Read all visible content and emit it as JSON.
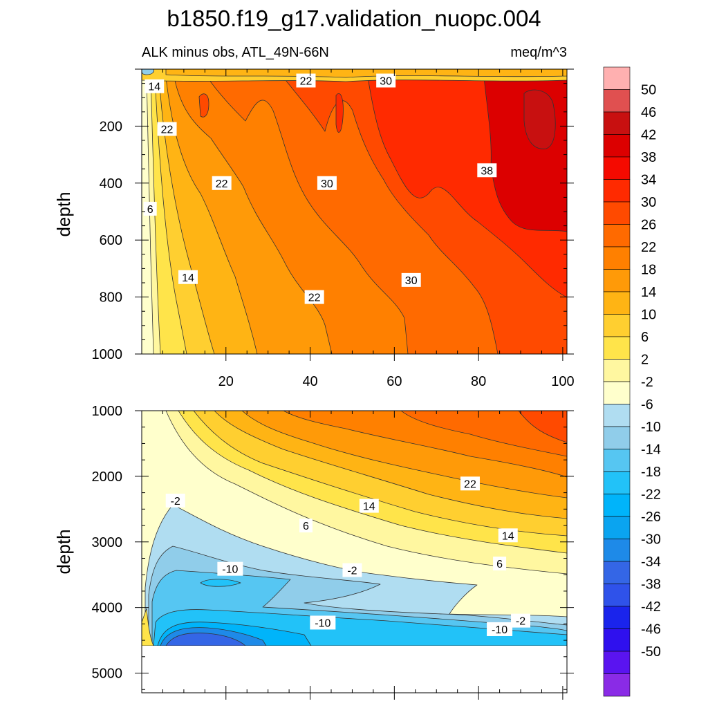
{
  "title": "b1850.f19_g17.validation_nuopc.004",
  "subtitle_left": "ALK minus obs, ATL_49N-66N",
  "subtitle_right": "meq/m^3",
  "colors": {
    "levels": [
      "#8a2be6",
      "#5a14f0",
      "#2f10ee",
      "#1a24ec",
      "#2f52ea",
      "#3466e6",
      "#1e8ae8",
      "#0aa4f0",
      "#00b4fa",
      "#22c2f8",
      "#56c6f2",
      "#90cdea",
      "#b0ddf1",
      "#ffffcc",
      "#fff7a0",
      "#ffe44a",
      "#ffcf30",
      "#ffb414",
      "#ff9a08",
      "#ff8000",
      "#ff6a00",
      "#ff4a00",
      "#ff2a00",
      "#f50a00",
      "#dc0000",
      "#c81010",
      "#e05050",
      "#ffb0b0"
    ]
  },
  "colorbar": {
    "labels": [
      "50",
      "46",
      "42",
      "38",
      "34",
      "30",
      "26",
      "22",
      "18",
      "14",
      "10",
      "6",
      "2",
      "-2",
      "-6",
      "-10",
      "-14",
      "-18",
      "-22",
      "-26",
      "-30",
      "-34",
      "-38",
      "-42",
      "-46",
      "-50"
    ]
  },
  "chart_data": [
    {
      "type": "contour",
      "panel": "upper",
      "ylabel": "depth",
      "xlim": [
        0,
        101
      ],
      "ylim": [
        0,
        1000
      ],
      "y_inverted": true,
      "x_ticks": [
        "20",
        "40",
        "60",
        "80",
        "100"
      ],
      "y_ticks": [
        "200",
        "400",
        "600",
        "800",
        "1000"
      ],
      "x_tick_values": [
        20,
        40,
        60,
        80,
        100
      ],
      "y_tick_values": [
        200,
        400,
        600,
        800,
        1000
      ],
      "contour_labels": [
        {
          "text": "14",
          "x": 3,
          "y": 60
        },
        {
          "text": "22",
          "x": 6,
          "y": 210
        },
        {
          "text": "22",
          "x": 39,
          "y": 40
        },
        {
          "text": "30",
          "x": 58,
          "y": 40
        },
        {
          "text": "22",
          "x": 19,
          "y": 400
        },
        {
          "text": "30",
          "x": 44,
          "y": 400
        },
        {
          "text": "38",
          "x": 82,
          "y": 355
        },
        {
          "text": "6",
          "x": 2,
          "y": 490
        },
        {
          "text": "14",
          "x": 11,
          "y": 730
        },
        {
          "text": "22",
          "x": 41,
          "y": 800
        },
        {
          "text": "30",
          "x": 64,
          "y": 740
        }
      ]
    },
    {
      "type": "contour",
      "panel": "lower",
      "ylabel": "depth",
      "xlim": [
        0,
        101
      ],
      "ylim": [
        1000,
        5300
      ],
      "y_inverted": true,
      "x_ticks": [],
      "y_ticks": [
        "1000",
        "2000",
        "3000",
        "4000",
        "5000"
      ],
      "y_tick_values": [
        1000,
        2000,
        3000,
        4000,
        5000
      ],
      "data_bottom_depth": 4620,
      "contour_labels": [
        {
          "text": "-2",
          "x": 8,
          "y": 2370
        },
        {
          "text": "6",
          "x": 39,
          "y": 2750
        },
        {
          "text": "14",
          "x": 54,
          "y": 2450
        },
        {
          "text": "22",
          "x": 78,
          "y": 2110
        },
        {
          "text": "14",
          "x": 87,
          "y": 2900
        },
        {
          "text": "6",
          "x": 85,
          "y": 3330
        },
        {
          "text": "-10",
          "x": 21,
          "y": 3410
        },
        {
          "text": "-2",
          "x": 50,
          "y": 3430
        },
        {
          "text": "-10",
          "x": 43,
          "y": 4230
        },
        {
          "text": "-2",
          "x": 90,
          "y": 4200
        },
        {
          "text": "-10",
          "x": 85,
          "y": 4330
        }
      ]
    }
  ]
}
